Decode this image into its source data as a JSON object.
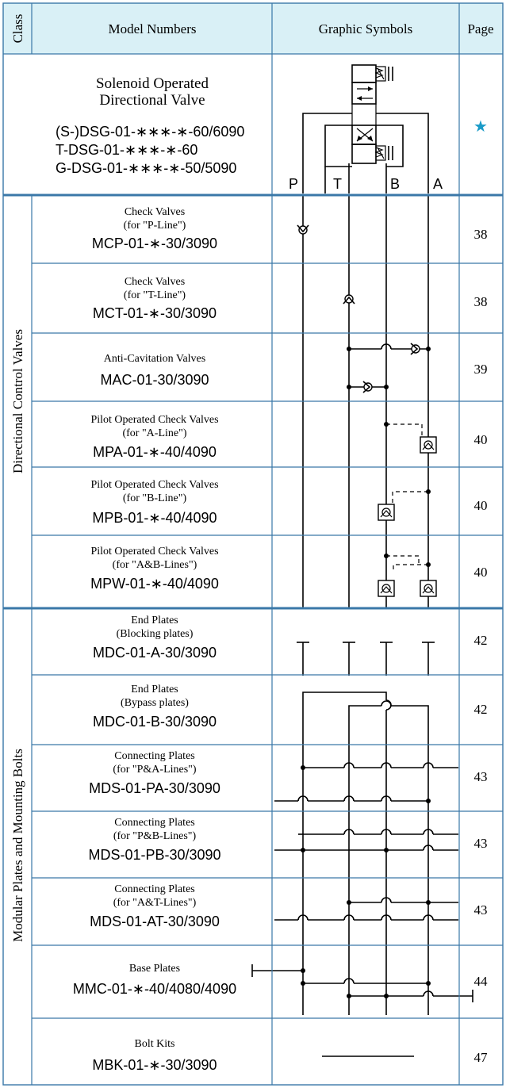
{
  "header": {
    "class_label": "Class",
    "model_label": "Model Numbers",
    "symbol_label": "Graphic Symbols",
    "page_label": "Page",
    "header_bg": "#d9f0f6",
    "grid_color": "#3a78a8",
    "star_color": "#1a9bc8"
  },
  "top_row": {
    "title_line1": "Solenoid Operated",
    "title_line2": "Directional Valve",
    "models": [
      "(S-)DSG-01-∗∗∗-∗-60/6090",
      "T-DSG-01-∗∗∗-∗-60",
      "G-DSG-01-∗∗∗-∗-50/5090"
    ],
    "page": "★",
    "ports": [
      "P",
      "T",
      "B",
      "A"
    ]
  },
  "groups": [
    {
      "label": "Directional Control Valves"
    },
    {
      "label": "Modular Plates and Mounting Bolts"
    }
  ],
  "rows": [
    {
      "title": "Check Valves",
      "sub": "(for \"P-Line\")",
      "model": "MCP-01-∗-30/3090",
      "page": "38"
    },
    {
      "title": "Check Valves",
      "sub": "(for \"T-Line\")",
      "model": "MCT-01-∗-30/3090",
      "page": "38"
    },
    {
      "title": "Anti-Cavitation Valves",
      "sub": "",
      "model": "MAC-01-30/3090",
      "page": "39"
    },
    {
      "title": "Pilot Operated Check Valves",
      "sub": "(for \"A-Line\")",
      "model": "MPA-01-∗-40/4090",
      "page": "40"
    },
    {
      "title": "Pilot Operated Check Valves",
      "sub": "(for \"B-Line\")",
      "model": "MPB-01-∗-40/4090",
      "page": "40"
    },
    {
      "title": "Pilot Operated Check Valves",
      "sub": "(for \"A&B-Lines\")",
      "model": "MPW-01-∗-40/4090",
      "page": "40"
    },
    {
      "title": "End Plates",
      "sub": "(Blocking plates)",
      "model": "MDC-01-A-30/3090",
      "page": "42"
    },
    {
      "title": "End Plates",
      "sub": "(Bypass plates)",
      "model": "MDC-01-B-30/3090",
      "page": "42"
    },
    {
      "title": "Connecting Plates",
      "sub": "(for \"P&A-Lines\")",
      "model": "MDS-01-PA-30/3090",
      "page": "43"
    },
    {
      "title": "Connecting Plates",
      "sub": "(for \"P&B-Lines\")",
      "model": "MDS-01-PB-30/3090",
      "page": "43"
    },
    {
      "title": "Connecting Plates",
      "sub": "(for \"A&T-Lines\")",
      "model": "MDS-01-AT-30/3090",
      "page": "43"
    },
    {
      "title": "Base Plates",
      "sub": "",
      "model": "MMC-01-∗-40/4080/4090",
      "page": "44"
    },
    {
      "title": "Bolt Kits",
      "sub": "",
      "model": "MBK-01-∗-30/3090",
      "page": "47"
    }
  ]
}
